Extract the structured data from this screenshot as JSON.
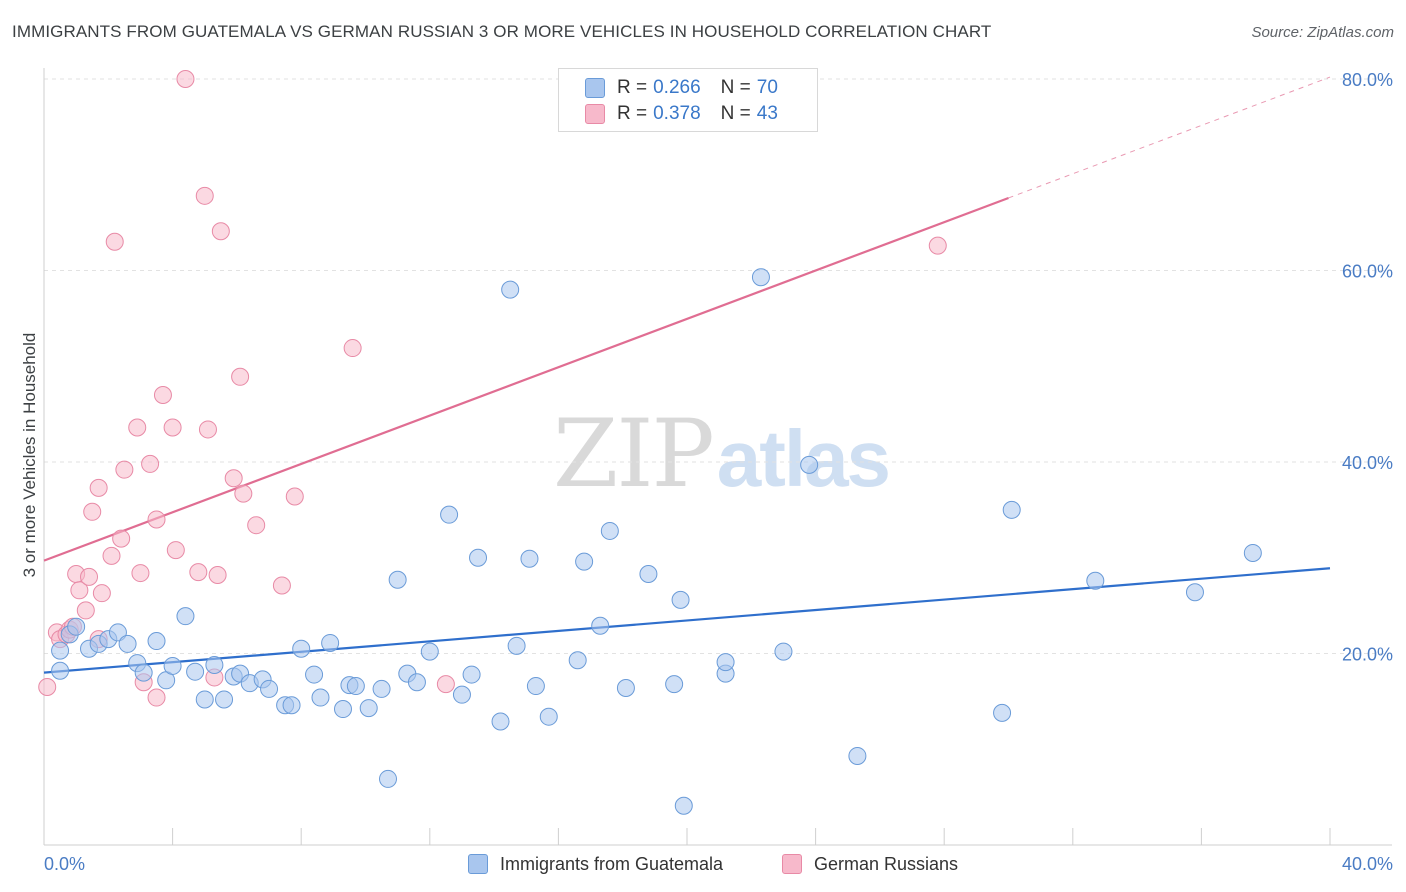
{
  "header": {
    "title": "IMMIGRANTS FROM GUATEMALA VS GERMAN RUSSIAN 3 OR MORE VEHICLES IN HOUSEHOLD CORRELATION CHART",
    "source": "Source: ZipAtlas.com"
  },
  "watermark": {
    "zip": "ZIP",
    "atlas": "atlas"
  },
  "legend": {
    "rows": [
      {
        "r_label": "R =",
        "r_value": "0.266",
        "n_label": "N =",
        "n_value": "70",
        "color": "#a9c6ee"
      },
      {
        "r_label": "R =",
        "r_value": "0.378",
        "n_label": "N =",
        "n_value": "43",
        "color": "#f7b9cb"
      }
    ]
  },
  "bottom_legend": {
    "series_1": "Immigrants from Guatemala",
    "series_2": "German Russians"
  },
  "chart_data": {
    "type": "scatter",
    "title": "IMMIGRANTS FROM GUATEMALA VS GERMAN RUSSIAN 3 OR MORE VEHICLES IN HOUSEHOLD CORRELATION CHART",
    "xlabel": "",
    "ylabel": "3 or more Vehicles in Household",
    "xlim": [
      0,
      40
    ],
    "ylim": [
      0,
      80
    ],
    "x_tick_labels": [
      "0.0%",
      "40.0%"
    ],
    "y_ticks": [
      20,
      40,
      60,
      80
    ],
    "y_tick_labels": [
      "20.0%",
      "40.0%",
      "60.0%",
      "80.0%"
    ],
    "grid": true,
    "legend_position": "top-center",
    "colors": {
      "series_1_fill": "#a9c6ee",
      "series_1_stroke": "#6a9bd8",
      "series_1_line": "#2f6fcc",
      "series_2_fill": "#f7b9cb",
      "series_2_stroke": "#e88aa6",
      "series_2_line": "#e06d92",
      "tick_text": "#4a7cc4"
    },
    "series": [
      {
        "name": "Immigrants from Guatemala",
        "r": 0.266,
        "n": 70,
        "trend": {
          "x0": 0,
          "y0": 18.0,
          "x1": 40,
          "y1": 28.9
        },
        "points": [
          [
            0.5,
            18.2
          ],
          [
            0.5,
            20.3
          ],
          [
            0.8,
            22.0
          ],
          [
            1.0,
            22.8
          ],
          [
            1.4,
            20.5
          ],
          [
            1.7,
            21.0
          ],
          [
            2.0,
            21.5
          ],
          [
            2.3,
            22.2
          ],
          [
            2.6,
            21.0
          ],
          [
            2.9,
            19.0
          ],
          [
            3.1,
            18.0
          ],
          [
            3.5,
            21.3
          ],
          [
            3.8,
            17.2
          ],
          [
            4.0,
            18.7
          ],
          [
            4.4,
            23.9
          ],
          [
            4.7,
            18.1
          ],
          [
            5.0,
            15.2
          ],
          [
            5.3,
            18.8
          ],
          [
            5.6,
            15.2
          ],
          [
            5.9,
            17.6
          ],
          [
            6.1,
            17.9
          ],
          [
            6.4,
            16.9
          ],
          [
            6.8,
            17.3
          ],
          [
            7.0,
            16.3
          ],
          [
            7.5,
            14.6
          ],
          [
            7.7,
            14.6
          ],
          [
            8.0,
            20.5
          ],
          [
            8.4,
            17.8
          ],
          [
            8.6,
            15.4
          ],
          [
            8.9,
            21.1
          ],
          [
            9.3,
            14.2
          ],
          [
            9.5,
            16.7
          ],
          [
            9.7,
            16.6
          ],
          [
            10.1,
            14.3
          ],
          [
            10.5,
            16.3
          ],
          [
            10.7,
            6.9
          ],
          [
            11.0,
            27.7
          ],
          [
            11.3,
            17.9
          ],
          [
            11.6,
            17.0
          ],
          [
            12.0,
            20.2
          ],
          [
            12.6,
            34.5
          ],
          [
            13.0,
            15.7
          ],
          [
            13.3,
            17.8
          ],
          [
            13.5,
            30.0
          ],
          [
            14.2,
            12.9
          ],
          [
            14.5,
            58.0
          ],
          [
            14.7,
            20.8
          ],
          [
            15.1,
            29.9
          ],
          [
            15.3,
            16.6
          ],
          [
            15.7,
            13.4
          ],
          [
            16.6,
            19.3
          ],
          [
            16.8,
            29.6
          ],
          [
            17.3,
            22.9
          ],
          [
            17.6,
            32.8
          ],
          [
            18.1,
            16.4
          ],
          [
            18.8,
            28.3
          ],
          [
            19.6,
            16.8
          ],
          [
            19.8,
            25.6
          ],
          [
            19.9,
            4.1
          ],
          [
            21.2,
            17.9
          ],
          [
            21.2,
            19.1
          ],
          [
            22.3,
            59.3
          ],
          [
            23.0,
            20.2
          ],
          [
            23.8,
            39.7
          ],
          [
            25.3,
            9.3
          ],
          [
            29.8,
            13.8
          ],
          [
            30.1,
            35.0
          ],
          [
            32.7,
            27.6
          ],
          [
            35.8,
            26.4
          ],
          [
            37.6,
            30.5
          ]
        ]
      },
      {
        "name": "German Russians",
        "r": 0.378,
        "n": 43,
        "trend": {
          "x0": 0,
          "y0": 29.7,
          "x1": 40,
          "y1": 80.2,
          "solid_until_x": 30.0
        },
        "points": [
          [
            0.1,
            16.5
          ],
          [
            0.4,
            22.2
          ],
          [
            0.5,
            21.5
          ],
          [
            0.7,
            22.0
          ],
          [
            0.8,
            22.5
          ],
          [
            0.9,
            22.8
          ],
          [
            1.0,
            28.3
          ],
          [
            1.1,
            26.6
          ],
          [
            1.3,
            24.5
          ],
          [
            1.4,
            28.0
          ],
          [
            1.5,
            34.8
          ],
          [
            1.7,
            37.3
          ],
          [
            1.7,
            21.5
          ],
          [
            1.8,
            26.3
          ],
          [
            2.1,
            30.2
          ],
          [
            2.2,
            63.0
          ],
          [
            2.4,
            32.0
          ],
          [
            2.5,
            39.2
          ],
          [
            2.9,
            43.6
          ],
          [
            3.0,
            28.4
          ],
          [
            3.1,
            17.0
          ],
          [
            3.3,
            39.8
          ],
          [
            3.5,
            34.0
          ],
          [
            3.5,
            15.4
          ],
          [
            3.7,
            47.0
          ],
          [
            4.0,
            43.6
          ],
          [
            4.1,
            30.8
          ],
          [
            4.4,
            80.0
          ],
          [
            4.8,
            28.5
          ],
          [
            5.0,
            67.8
          ],
          [
            5.1,
            43.4
          ],
          [
            5.3,
            17.5
          ],
          [
            5.4,
            28.2
          ],
          [
            5.5,
            64.1
          ],
          [
            5.9,
            38.3
          ],
          [
            6.1,
            48.9
          ],
          [
            6.2,
            36.7
          ],
          [
            6.6,
            33.4
          ],
          [
            7.4,
            27.1
          ],
          [
            7.8,
            36.4
          ],
          [
            9.6,
            51.9
          ],
          [
            12.5,
            16.8
          ],
          [
            27.8,
            62.6
          ]
        ]
      }
    ]
  }
}
